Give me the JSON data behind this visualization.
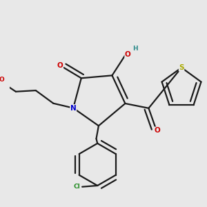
{
  "bg_color": "#e8e8e8",
  "bond_color": "#1a1a1a",
  "bond_lw": 1.6,
  "atom_colors": {
    "O": "#cc0000",
    "N": "#0000cc",
    "S": "#aaaa00",
    "Cl": "#228b22",
    "H_teal": "#2e8b8b"
  },
  "label_fs": 7.5,
  "label_fs_small": 6.5
}
